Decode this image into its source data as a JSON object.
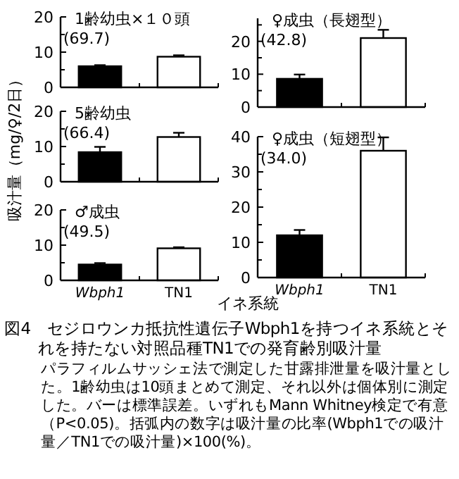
{
  "chart_data": [
    {
      "type": "bar",
      "title": "1齢幼虫×１０頭",
      "annotations": [
        "(69.7)"
      ],
      "categories": [
        null,
        null
      ],
      "values": [
        6.0,
        8.7
      ],
      "colors": [
        "#000000",
        "#ffffff"
      ],
      "errors": [
        [
          6.0,
          6.3
        ],
        [
          8.7,
          9.1
        ]
      ],
      "ylim": [
        0,
        20
      ],
      "yticks": [
        0,
        {
          "value": 5,
          "label": null
        },
        10,
        {
          "value": 15,
          "label": null
        },
        20
      ],
      "tick_labels": "y"
    },
    {
      "type": "bar",
      "title": "5齢幼虫",
      "annotations": [
        "(66.4)"
      ],
      "categories": [
        null,
        null
      ],
      "values": [
        8.4,
        12.7
      ],
      "colors": [
        "#000000",
        "#ffffff"
      ],
      "errors": [
        [
          8.4,
          9.9
        ],
        [
          12.7,
          13.9
        ]
      ],
      "ylim": [
        0,
        20
      ],
      "yticks": [
        0,
        {
          "value": 5,
          "label": null
        },
        10,
        {
          "value": 15,
          "label": null
        },
        20
      ],
      "tick_labels": "y",
      "ylabel": "吸汁量（mg/♀/2日）"
    },
    {
      "type": "bar",
      "title": "♂成虫",
      "annotations": [
        "(49.5)"
      ],
      "categories": [
        "Wbph1",
        "TN1"
      ],
      "values": [
        4.5,
        9.1
      ],
      "colors": [
        "#000000",
        "#ffffff"
      ],
      "errors": [
        [
          4.5,
          4.9
        ],
        [
          9.1,
          9.4
        ]
      ],
      "ylim": [
        0,
        20
      ],
      "yticks": [
        0,
        {
          "value": 5,
          "label": null
        },
        10,
        {
          "value": 15,
          "label": null
        },
        20
      ],
      "xlabel": "イネ系統"
    },
    {
      "type": "bar",
      "title": "♀成虫（長翅型）",
      "annotations": [
        "(42.8)"
      ],
      "categories": [
        null,
        null
      ],
      "values": [
        8.6,
        21.0
      ],
      "colors": [
        "#000000",
        "#ffffff"
      ],
      "errors": [
        [
          8.6,
          9.9
        ],
        [
          21.0,
          23.5
        ]
      ],
      "ylim": [
        0,
        27
      ],
      "yticks": [
        0,
        {
          "value": 5,
          "label": null
        },
        10,
        {
          "value": 15,
          "label": null
        },
        20,
        {
          "value": 25,
          "label": null
        }
      ],
      "tick_labels": "y"
    },
    {
      "type": "bar",
      "title": "♀成虫（短翅型）",
      "annotations": [
        "(34.0)"
      ],
      "categories": [
        "Wbph1",
        "TN1"
      ],
      "values": [
        12.0,
        36.0
      ],
      "colors": [
        "#000000",
        "#ffffff"
      ],
      "errors": [
        [
          12.0,
          13.5
        ],
        [
          36.0,
          39.8
        ]
      ],
      "ylim": [
        0,
        40
      ],
      "yticks": [
        0,
        {
          "value": 5,
          "label": null
        },
        10,
        {
          "value": 15,
          "label": null
        },
        20,
        {
          "value": 25,
          "label": null
        },
        30,
        {
          "value": 35,
          "label": null
        },
        40
      ]
    },
    {
      "type": "other",
      "title": "図4　セジロウンカ抵抗性遺伝子Wbph1を持つイネ系統とそれを持たない対照品種TN1での発育齢別吸汁量",
      "annotations": [
        "パラフィルムサッシェ法で測定した甘露排泄量を吸汁量とした。1齢幼虫は10頭まとめて測定、それ以外は個体別に測定した。バーは標準誤差。いずれもMann Whitney検定で有意（P<0.05)。括弧内の数字は吸汁量の比率(Wbph1での吸汁量／TN1での吸汁量)×100(%)。"
      ]
    }
  ]
}
